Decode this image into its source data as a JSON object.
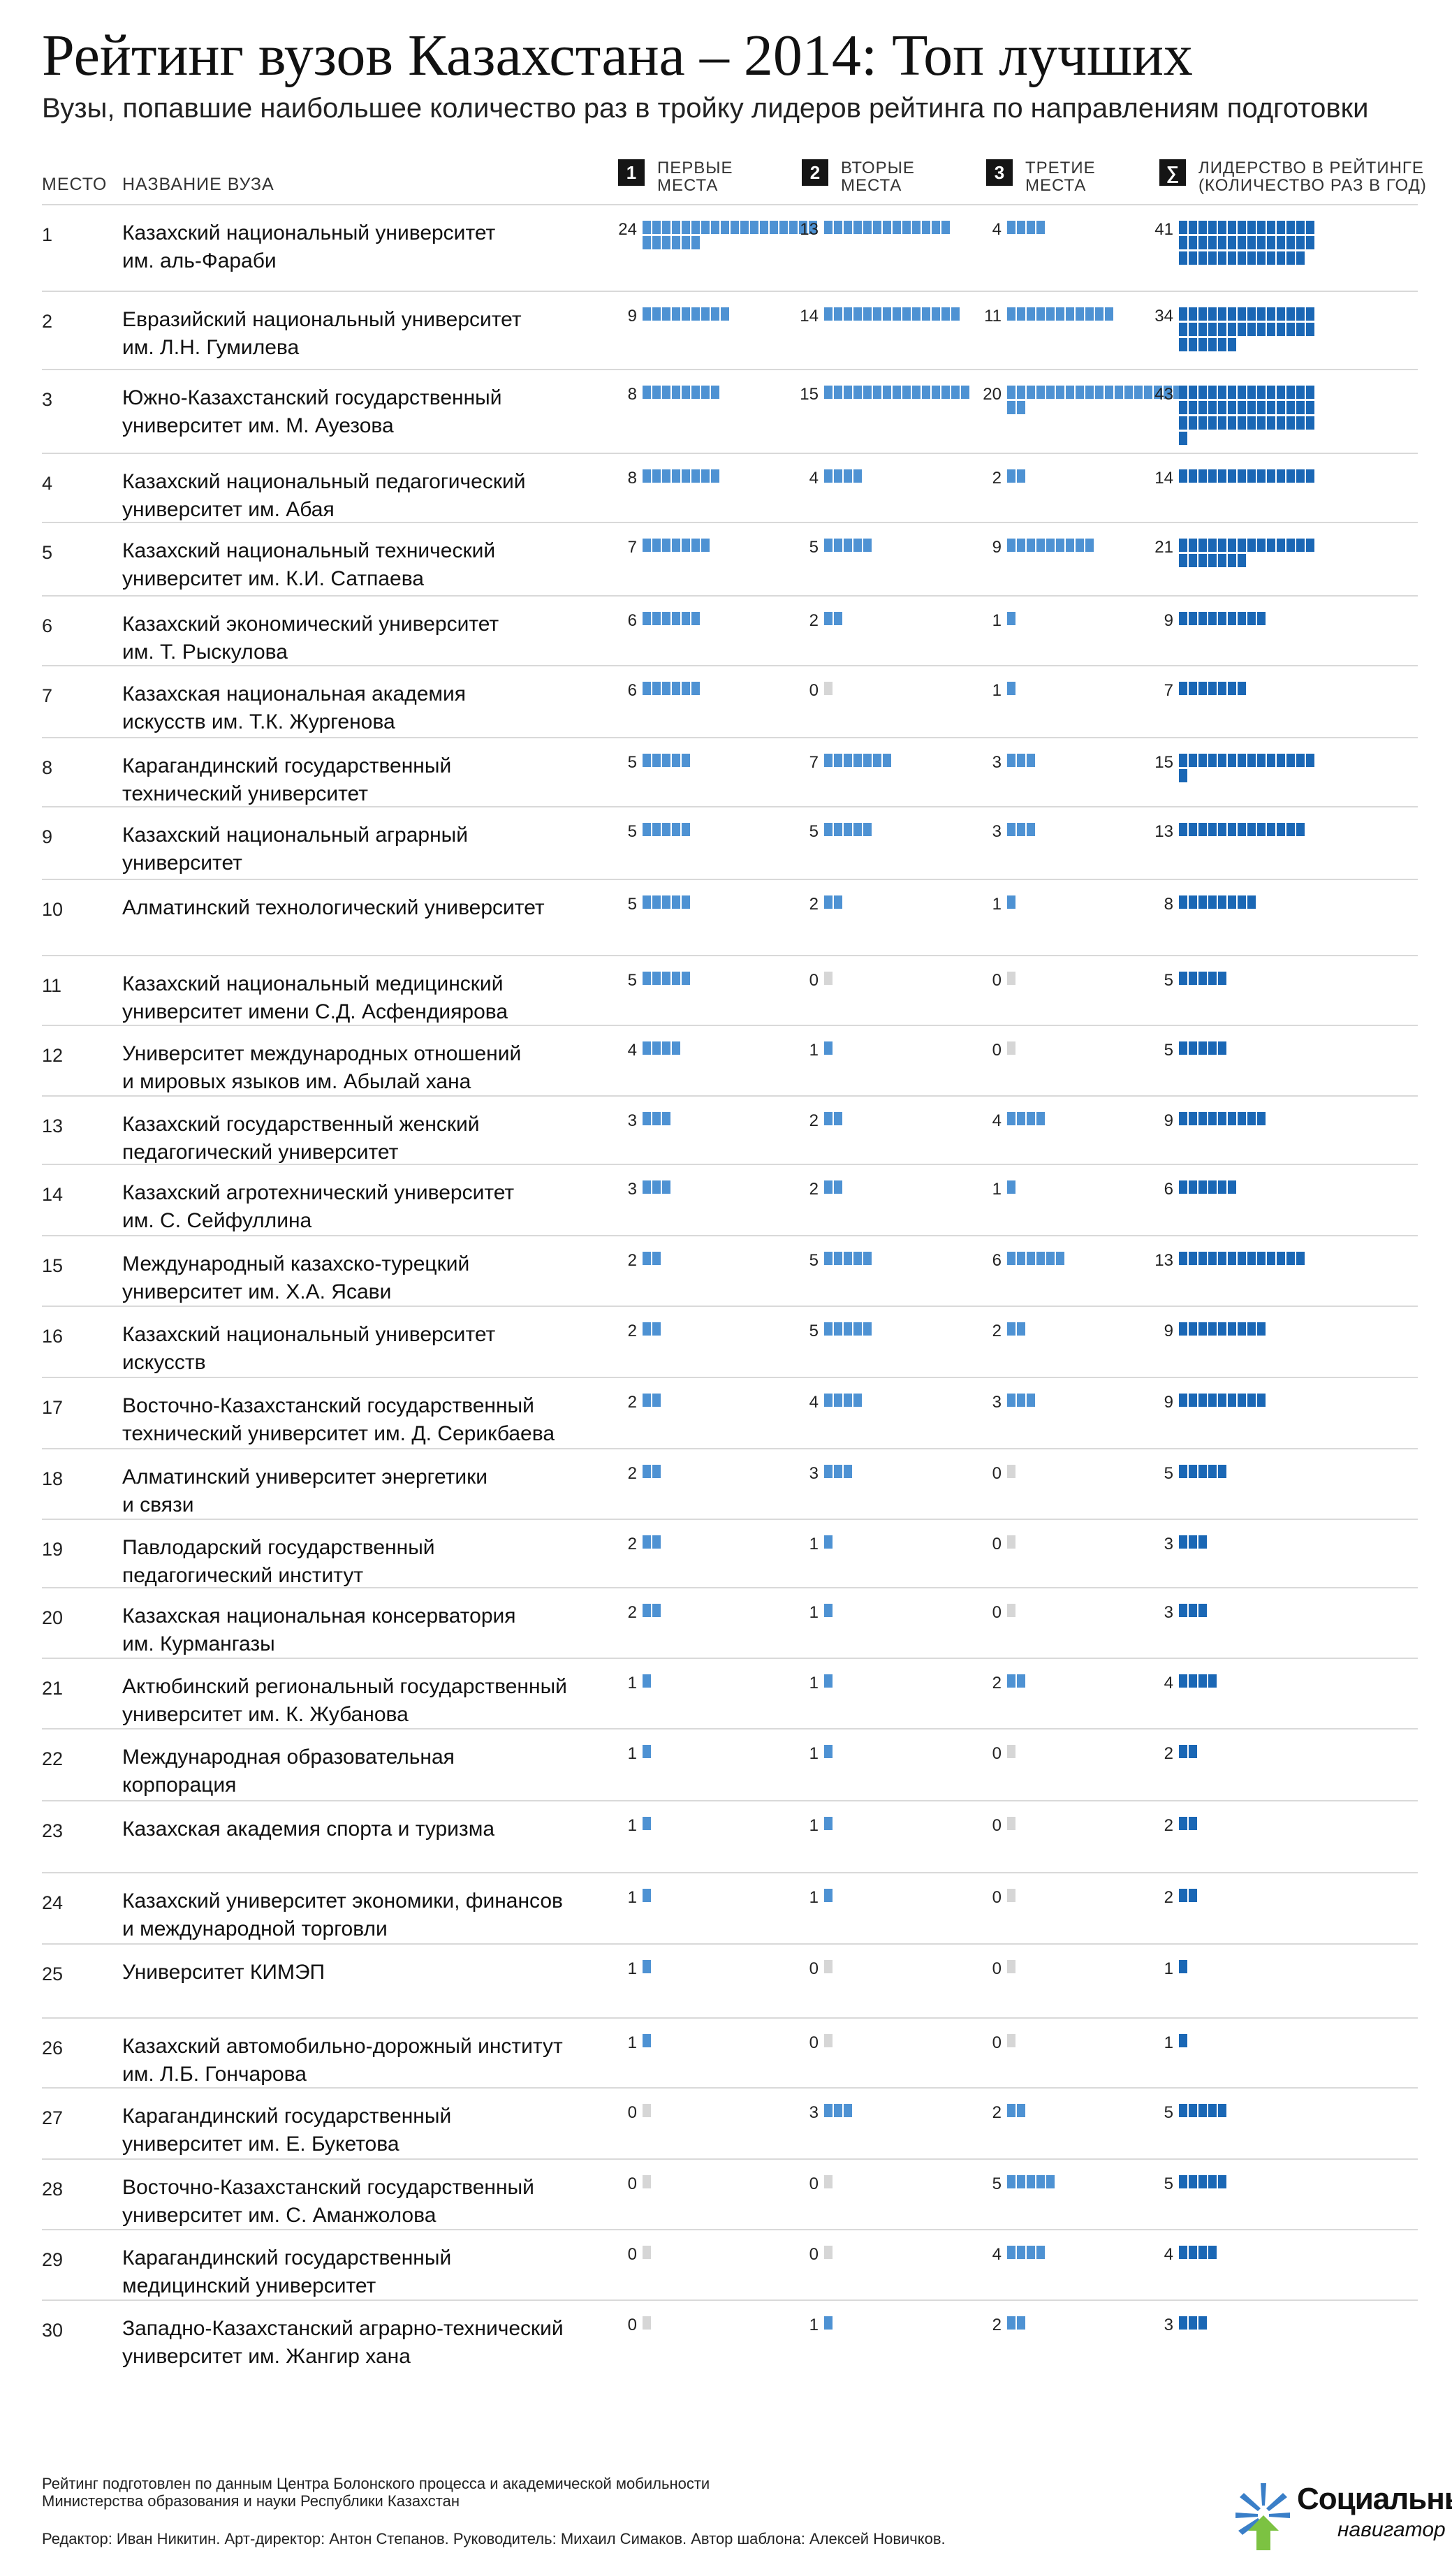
{
  "title": "Рейтинг вузов Казахстана – 2014: Топ лучших",
  "subtitle": "Вузы, попавшие наибольшее количество раз в тройку лидеров рейтинга по направлениям подготовки",
  "headers": {
    "rank": "Место",
    "name": "Название вуза",
    "col1_badge": "1",
    "col1": "Первые\nместа",
    "col2_badge": "2",
    "col2": "Вторые\nместа",
    "col3_badge": "3",
    "col3": "Третие\nместа",
    "col4_badge": "∑",
    "col4": "Лидерство в рейтинге\n(количество раз в год)"
  },
  "colors": {
    "places": "#4e92d3",
    "total": "#1a67b5",
    "zero": "#d6d6d6"
  },
  "chart_data": {
    "type": "table",
    "columns": [
      "Место",
      "Название вуза",
      "Первые места",
      "Вторые места",
      "Третие места",
      "Лидерство в рейтинге (количество раз в год)"
    ],
    "rows": [
      {
        "rank": "1",
        "name": "Казахский национальный университет\nим. аль-Фараби",
        "first": 24,
        "second": 13,
        "third": 4,
        "total": 41
      },
      {
        "rank": "2",
        "name": "Евразийский национальный университет\nим. Л.Н. Гумилева",
        "first": 9,
        "second": 14,
        "third": 11,
        "total": 34
      },
      {
        "rank": "3",
        "name": "Южно-Казахстанский государственный\nуниверситет им. М. Ауезова",
        "first": 8,
        "second": 15,
        "third": 20,
        "total": 43
      },
      {
        "rank": "4",
        "name": "Казахский национальный педагогический\nуниверситет им. Абая",
        "first": 8,
        "second": 4,
        "third": 2,
        "total": 14
      },
      {
        "rank": "5",
        "name": "Казахский национальный технический\nуниверситет им. К.И. Сатпаева",
        "first": 7,
        "second": 5,
        "third": 9,
        "total": 21
      },
      {
        "rank": "6",
        "name": "Казахский экономический университет\nим. Т. Рыскулова",
        "first": 6,
        "second": 2,
        "third": 1,
        "total": 9
      },
      {
        "rank": "7",
        "name": "Казахская национальная академия\nискусств им. Т.К. Жургенова",
        "first": 6,
        "second": 0,
        "third": 1,
        "total": 7
      },
      {
        "rank": "8",
        "name": "Карагандинский государственный\nтехнический университет",
        "first": 5,
        "second": 7,
        "third": 3,
        "total": 15
      },
      {
        "rank": "9",
        "name": "Казахский национальный аграрный\nуниверситет",
        "first": 5,
        "second": 5,
        "third": 3,
        "total": 13
      },
      {
        "rank": "10",
        "name": "Алматинский технологический университет",
        "first": 5,
        "second": 2,
        "third": 1,
        "total": 8
      },
      {
        "rank": "11",
        "name": "Казахский национальный медицинский\nуниверситет имени С.Д. Асфендиярова",
        "first": 5,
        "second": 0,
        "third": 0,
        "total": 5
      },
      {
        "rank": "12",
        "name": "Университет международных отношений\nи мировых языков им. Абылай хана",
        "first": 4,
        "second": 1,
        "third": 0,
        "total": 5
      },
      {
        "rank": "13",
        "name": "Казахский государственный женский\nпедагогический университет",
        "first": 3,
        "second": 2,
        "third": 4,
        "total": 9
      },
      {
        "rank": "14",
        "name": "Казахский агротехнический университет\nим. С. Сейфуллина",
        "first": 3,
        "second": 2,
        "third": 1,
        "total": 6
      },
      {
        "rank": "15",
        "name": "Международный казахско-турецкий\nуниверситет им. Х.А. Ясави",
        "first": 2,
        "second": 5,
        "third": 6,
        "total": 13
      },
      {
        "rank": "16",
        "name": "Казахский национальный университет\nискусств",
        "first": 2,
        "second": 5,
        "third": 2,
        "total": 9
      },
      {
        "rank": "17",
        "name": "Восточно-Казахстанский государственный\nтехнический университет им. Д. Серикбаева",
        "first": 2,
        "second": 4,
        "third": 3,
        "total": 9
      },
      {
        "rank": "18",
        "name": "Алматинский университет энергетики\nи связи",
        "first": 2,
        "second": 3,
        "third": 0,
        "total": 5
      },
      {
        "rank": "19",
        "name": "Павлодарский государственный\nпедагогический институт",
        "first": 2,
        "second": 1,
        "third": 0,
        "total": 3
      },
      {
        "rank": "20",
        "name": "Казахская национальная консерватория\nим. Курмангазы",
        "first": 2,
        "second": 1,
        "third": 0,
        "total": 3
      },
      {
        "rank": "21",
        "name": "Актюбинский региональный государственный\nуниверситет им. К. Жубанова",
        "first": 1,
        "second": 1,
        "third": 2,
        "total": 4
      },
      {
        "rank": "22",
        "name": "Международная образовательная\nкорпорация",
        "first": 1,
        "second": 1,
        "third": 0,
        "total": 2
      },
      {
        "rank": "23",
        "name": "Казахская академия спорта и туризма",
        "first": 1,
        "second": 1,
        "third": 0,
        "total": 2
      },
      {
        "rank": "24",
        "name": "Казахский университет экономики, финансов\nи международной торговли",
        "first": 1,
        "second": 1,
        "third": 0,
        "total": 2
      },
      {
        "rank": "25",
        "name": "Университет КИМЭП",
        "first": 1,
        "second": 0,
        "third": 0,
        "total": 1
      },
      {
        "rank": "26",
        "name": "Казахский автомобильно-дорожный институт\nим. Л.Б. Гончарова",
        "first": 1,
        "second": 0,
        "third": 0,
        "total": 1
      },
      {
        "rank": "27",
        "name": "Карагандинский государственный\nуниверситет им. Е. Букетова",
        "first": 0,
        "second": 3,
        "third": 2,
        "total": 5
      },
      {
        "rank": "28",
        "name": "Восточно-Казахстанский государственный\nуниверситет им. С. Аманжолова",
        "first": 0,
        "second": 0,
        "third": 5,
        "total": 5
      },
      {
        "rank": "29",
        "name": "Карагандинский государственный\nмедицинский университет",
        "first": 0,
        "second": 0,
        "third": 4,
        "total": 4
      },
      {
        "rank": "30",
        "name": "Западно-Казахстанский аграрно-технический\nуниверситет им. Жангир хана",
        "first": 0,
        "second": 1,
        "third": 2,
        "total": 3
      }
    ]
  },
  "footer": {
    "source": "Рейтинг подготовлен по данным Центра Болонского процесса и академической мобильности\nМинистерства образования и науки Республики Казахстан",
    "credits": "Редактор: Иван Никитин. Арт-директор: Антон Степанов. Руководитель: Михаил Симаков. Автор шаблона: Алексей Новичков."
  },
  "logo": {
    "word1": "Социальный",
    "word2": "навигатор",
    "icon": "snowflake-arrow-logo"
  }
}
